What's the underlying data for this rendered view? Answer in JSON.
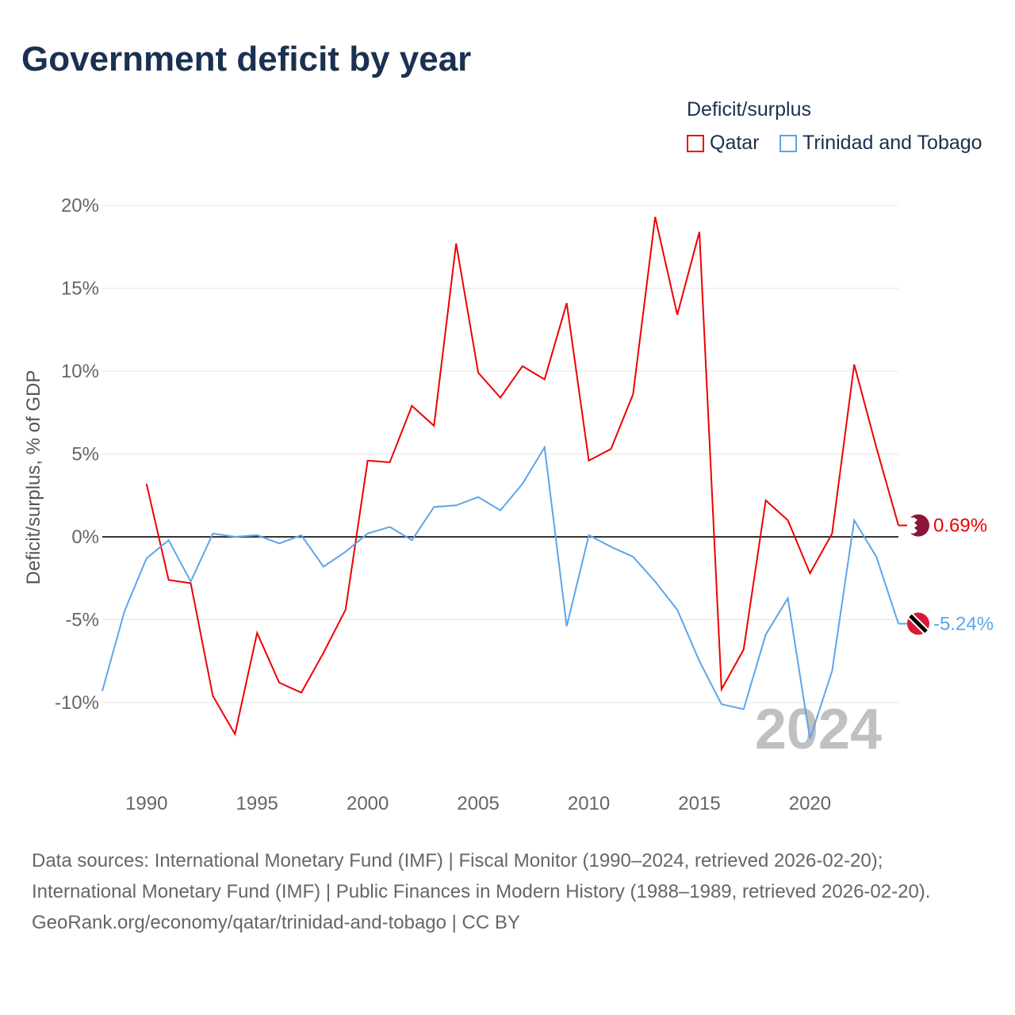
{
  "title": "Government deficit by year",
  "legend": {
    "title": "Deficit/surplus",
    "items": [
      {
        "name": "Qatar",
        "color": "#ee0000"
      },
      {
        "name": "Trinidad and Tobago",
        "color": "#5da5ea"
      }
    ]
  },
  "chart_data": {
    "type": "line",
    "title": "Government deficit by year",
    "ylabel": "Deficit/surplus, % of GDP",
    "xlabel": "",
    "xlim": [
      1988,
      2024
    ],
    "ylim": [
      -14,
      21
    ],
    "yticks": [
      20,
      15,
      10,
      5,
      0,
      -5,
      -10
    ],
    "ytick_labels": [
      "20%",
      "15%",
      "10%",
      "5%",
      "0%",
      "-5%",
      "-10%"
    ],
    "xticks": [
      1990,
      1995,
      2000,
      2005,
      2010,
      2015,
      2020
    ],
    "xtick_labels": [
      "1990",
      "1995",
      "2000",
      "2005",
      "2010",
      "2015",
      "2020"
    ],
    "watermark_year": "2024",
    "series": [
      {
        "name": "Qatar",
        "color": "#ee0000",
        "end_label": "0.69%",
        "x": [
          1990,
          1991,
          1992,
          1993,
          1994,
          1995,
          1996,
          1997,
          1998,
          1999,
          2000,
          2001,
          2002,
          2003,
          2004,
          2005,
          2006,
          2007,
          2008,
          2009,
          2010,
          2011,
          2012,
          2013,
          2014,
          2015,
          2016,
          2017,
          2018,
          2019,
          2020,
          2021,
          2022,
          2023,
          2024
        ],
        "values": [
          3.2,
          -2.6,
          -2.8,
          -9.6,
          -11.9,
          -5.8,
          -8.8,
          -9.4,
          -7.0,
          -4.4,
          4.6,
          4.5,
          7.9,
          6.7,
          17.7,
          9.9,
          8.4,
          10.3,
          9.5,
          14.1,
          4.6,
          5.3,
          8.6,
          19.3,
          13.4,
          18.4,
          -9.2,
          -6.8,
          2.2,
          1.0,
          -2.2,
          0.2,
          10.4,
          5.4,
          0.69
        ]
      },
      {
        "name": "Trinidad and Tobago",
        "color": "#5da5ea",
        "end_label": "-5.24%",
        "x": [
          1988,
          1989,
          1990,
          1991,
          1992,
          1993,
          1994,
          1995,
          1996,
          1997,
          1998,
          1999,
          2000,
          2001,
          2002,
          2003,
          2004,
          2005,
          2006,
          2007,
          2008,
          2009,
          2010,
          2011,
          2012,
          2013,
          2014,
          2015,
          2016,
          2017,
          2018,
          2019,
          2020,
          2021,
          2022,
          2023,
          2024
        ],
        "values": [
          -9.3,
          -4.5,
          -1.3,
          -0.2,
          -2.7,
          0.2,
          0.0,
          0.1,
          -0.4,
          0.1,
          -1.8,
          -0.9,
          0.2,
          0.6,
          -0.2,
          1.8,
          1.9,
          2.4,
          1.6,
          3.2,
          5.4,
          -5.4,
          0.1,
          -0.6,
          -1.2,
          -2.7,
          -4.4,
          -7.5,
          -10.1,
          -10.4,
          -5.9,
          -3.7,
          -12.2,
          -8.1,
          1.0,
          -1.2,
          -5.24
        ]
      }
    ]
  },
  "footer": {
    "line1": "Data sources: International Monetary Fund (IMF) | Fiscal Monitor (1990–2024, retrieved 2026-02-20); International Monetary Fund (IMF) | Public Finances in Modern History (1988–1989, retrieved 2026-02-20).",
    "line2": "GeoRank.org/economy/qatar/trinidad-and-tobago | CC BY"
  }
}
